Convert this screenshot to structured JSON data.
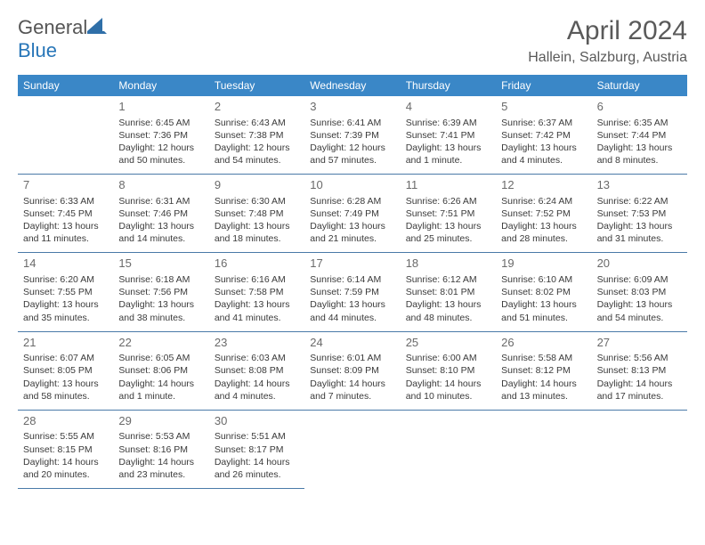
{
  "logo": {
    "text1": "General",
    "text2": "Blue"
  },
  "title": "April 2024",
  "location": "Hallein, Salzburg, Austria",
  "headers": [
    "Sunday",
    "Monday",
    "Tuesday",
    "Wednesday",
    "Thursday",
    "Friday",
    "Saturday"
  ],
  "colors": {
    "header_bg": "#3a87c7",
    "header_fg": "#ffffff",
    "border": "#4a7aa8",
    "text": "#3a3a3a",
    "title": "#5a5a5a",
    "logo_gray": "#555555",
    "logo_blue": "#2876b8",
    "background": "#ffffff"
  },
  "typography": {
    "title_fontsize": 30,
    "location_fontsize": 16,
    "header_fontsize": 12,
    "daynum_fontsize": 13,
    "body_fontsize": 10.5
  },
  "layout": {
    "columns": 7,
    "leading_blanks": 1,
    "trailing_blanks": 4
  },
  "days": [
    {
      "n": "1",
      "sunrise": "Sunrise: 6:45 AM",
      "sunset": "Sunset: 7:36 PM",
      "daylight": "Daylight: 12 hours and 50 minutes."
    },
    {
      "n": "2",
      "sunrise": "Sunrise: 6:43 AM",
      "sunset": "Sunset: 7:38 PM",
      "daylight": "Daylight: 12 hours and 54 minutes."
    },
    {
      "n": "3",
      "sunrise": "Sunrise: 6:41 AM",
      "sunset": "Sunset: 7:39 PM",
      "daylight": "Daylight: 12 hours and 57 minutes."
    },
    {
      "n": "4",
      "sunrise": "Sunrise: 6:39 AM",
      "sunset": "Sunset: 7:41 PM",
      "daylight": "Daylight: 13 hours and 1 minute."
    },
    {
      "n": "5",
      "sunrise": "Sunrise: 6:37 AM",
      "sunset": "Sunset: 7:42 PM",
      "daylight": "Daylight: 13 hours and 4 minutes."
    },
    {
      "n": "6",
      "sunrise": "Sunrise: 6:35 AM",
      "sunset": "Sunset: 7:44 PM",
      "daylight": "Daylight: 13 hours and 8 minutes."
    },
    {
      "n": "7",
      "sunrise": "Sunrise: 6:33 AM",
      "sunset": "Sunset: 7:45 PM",
      "daylight": "Daylight: 13 hours and 11 minutes."
    },
    {
      "n": "8",
      "sunrise": "Sunrise: 6:31 AM",
      "sunset": "Sunset: 7:46 PM",
      "daylight": "Daylight: 13 hours and 14 minutes."
    },
    {
      "n": "9",
      "sunrise": "Sunrise: 6:30 AM",
      "sunset": "Sunset: 7:48 PM",
      "daylight": "Daylight: 13 hours and 18 minutes."
    },
    {
      "n": "10",
      "sunrise": "Sunrise: 6:28 AM",
      "sunset": "Sunset: 7:49 PM",
      "daylight": "Daylight: 13 hours and 21 minutes."
    },
    {
      "n": "11",
      "sunrise": "Sunrise: 6:26 AM",
      "sunset": "Sunset: 7:51 PM",
      "daylight": "Daylight: 13 hours and 25 minutes."
    },
    {
      "n": "12",
      "sunrise": "Sunrise: 6:24 AM",
      "sunset": "Sunset: 7:52 PM",
      "daylight": "Daylight: 13 hours and 28 minutes."
    },
    {
      "n": "13",
      "sunrise": "Sunrise: 6:22 AM",
      "sunset": "Sunset: 7:53 PM",
      "daylight": "Daylight: 13 hours and 31 minutes."
    },
    {
      "n": "14",
      "sunrise": "Sunrise: 6:20 AM",
      "sunset": "Sunset: 7:55 PM",
      "daylight": "Daylight: 13 hours and 35 minutes."
    },
    {
      "n": "15",
      "sunrise": "Sunrise: 6:18 AM",
      "sunset": "Sunset: 7:56 PM",
      "daylight": "Daylight: 13 hours and 38 minutes."
    },
    {
      "n": "16",
      "sunrise": "Sunrise: 6:16 AM",
      "sunset": "Sunset: 7:58 PM",
      "daylight": "Daylight: 13 hours and 41 minutes."
    },
    {
      "n": "17",
      "sunrise": "Sunrise: 6:14 AM",
      "sunset": "Sunset: 7:59 PM",
      "daylight": "Daylight: 13 hours and 44 minutes."
    },
    {
      "n": "18",
      "sunrise": "Sunrise: 6:12 AM",
      "sunset": "Sunset: 8:01 PM",
      "daylight": "Daylight: 13 hours and 48 minutes."
    },
    {
      "n": "19",
      "sunrise": "Sunrise: 6:10 AM",
      "sunset": "Sunset: 8:02 PM",
      "daylight": "Daylight: 13 hours and 51 minutes."
    },
    {
      "n": "20",
      "sunrise": "Sunrise: 6:09 AM",
      "sunset": "Sunset: 8:03 PM",
      "daylight": "Daylight: 13 hours and 54 minutes."
    },
    {
      "n": "21",
      "sunrise": "Sunrise: 6:07 AM",
      "sunset": "Sunset: 8:05 PM",
      "daylight": "Daylight: 13 hours and 58 minutes."
    },
    {
      "n": "22",
      "sunrise": "Sunrise: 6:05 AM",
      "sunset": "Sunset: 8:06 PM",
      "daylight": "Daylight: 14 hours and 1 minute."
    },
    {
      "n": "23",
      "sunrise": "Sunrise: 6:03 AM",
      "sunset": "Sunset: 8:08 PM",
      "daylight": "Daylight: 14 hours and 4 minutes."
    },
    {
      "n": "24",
      "sunrise": "Sunrise: 6:01 AM",
      "sunset": "Sunset: 8:09 PM",
      "daylight": "Daylight: 14 hours and 7 minutes."
    },
    {
      "n": "25",
      "sunrise": "Sunrise: 6:00 AM",
      "sunset": "Sunset: 8:10 PM",
      "daylight": "Daylight: 14 hours and 10 minutes."
    },
    {
      "n": "26",
      "sunrise": "Sunrise: 5:58 AM",
      "sunset": "Sunset: 8:12 PM",
      "daylight": "Daylight: 14 hours and 13 minutes."
    },
    {
      "n": "27",
      "sunrise": "Sunrise: 5:56 AM",
      "sunset": "Sunset: 8:13 PM",
      "daylight": "Daylight: 14 hours and 17 minutes."
    },
    {
      "n": "28",
      "sunrise": "Sunrise: 5:55 AM",
      "sunset": "Sunset: 8:15 PM",
      "daylight": "Daylight: 14 hours and 20 minutes."
    },
    {
      "n": "29",
      "sunrise": "Sunrise: 5:53 AM",
      "sunset": "Sunset: 8:16 PM",
      "daylight": "Daylight: 14 hours and 23 minutes."
    },
    {
      "n": "30",
      "sunrise": "Sunrise: 5:51 AM",
      "sunset": "Sunset: 8:17 PM",
      "daylight": "Daylight: 14 hours and 26 minutes."
    }
  ]
}
